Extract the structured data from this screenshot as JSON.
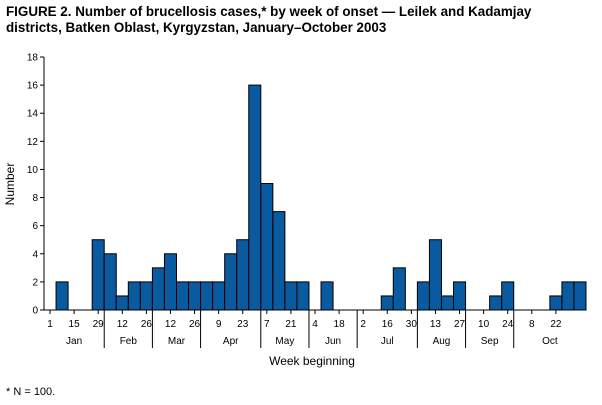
{
  "title_line1": "FIGURE 2. Number of brucellosis cases,* by week of onset — Leilek and Kadamjay",
  "title_line2": "districts, Batken Oblast, Kyrgyzstan, January–October 2003",
  "footnote": "* N = 100.",
  "chart_data": {
    "type": "bar",
    "title": "Number of brucellosis cases, by week of onset — Leilek and Kadamjay districts, Batken Oblast, Kyrgyzstan, January–October 2003",
    "xlabel": "Week beginning",
    "ylabel": "Number",
    "ylim": [
      0,
      18
    ],
    "yticks": [
      0,
      2,
      4,
      6,
      8,
      10,
      12,
      14,
      16,
      18
    ],
    "grid": false,
    "values": [
      0,
      2,
      0,
      0,
      5,
      4,
      1,
      2,
      2,
      3,
      4,
      2,
      2,
      2,
      2,
      4,
      5,
      16,
      9,
      7,
      2,
      2,
      0,
      2,
      0,
      0,
      0,
      0,
      1,
      3,
      0,
      2,
      5,
      1,
      2,
      0,
      0,
      1,
      2,
      0,
      0,
      0,
      1,
      2,
      2
    ],
    "week_labels": [
      {
        "week": 0,
        "label": "1"
      },
      {
        "week": 2,
        "label": "15"
      },
      {
        "week": 4,
        "label": "29"
      },
      {
        "week": 6,
        "label": "12"
      },
      {
        "week": 8,
        "label": "26"
      },
      {
        "week": 10,
        "label": "12"
      },
      {
        "week": 12,
        "label": "26"
      },
      {
        "week": 14,
        "label": "9"
      },
      {
        "week": 16,
        "label": "23"
      },
      {
        "week": 18,
        "label": "7"
      },
      {
        "week": 20,
        "label": "21"
      },
      {
        "week": 22,
        "label": "4"
      },
      {
        "week": 24,
        "label": "18"
      },
      {
        "week": 26,
        "label": "2"
      },
      {
        "week": 28,
        "label": "16"
      },
      {
        "week": 30,
        "label": "30"
      },
      {
        "week": 32,
        "label": "13"
      },
      {
        "week": 34,
        "label": "27"
      },
      {
        "week": 36,
        "label": "10"
      },
      {
        "week": 38,
        "label": "24"
      },
      {
        "week": 40,
        "label": "8"
      },
      {
        "week": 42,
        "label": "22"
      }
    ],
    "months": [
      {
        "name": "Jan",
        "start": 0,
        "end": 4
      },
      {
        "name": "Feb",
        "start": 5,
        "end": 8
      },
      {
        "name": "Mar",
        "start": 9,
        "end": 12
      },
      {
        "name": "Apr",
        "start": 13,
        "end": 17
      },
      {
        "name": "May",
        "start": 18,
        "end": 21
      },
      {
        "name": "Jun",
        "start": 22,
        "end": 25
      },
      {
        "name": "Jul",
        "start": 26,
        "end": 30
      },
      {
        "name": "Aug",
        "start": 31,
        "end": 34
      },
      {
        "name": "Sep",
        "start": 35,
        "end": 38
      },
      {
        "name": "Oct",
        "start": 39,
        "end": 44
      }
    ],
    "bar_color": "#0a5aa0",
    "bar_stroke": "#000000"
  }
}
